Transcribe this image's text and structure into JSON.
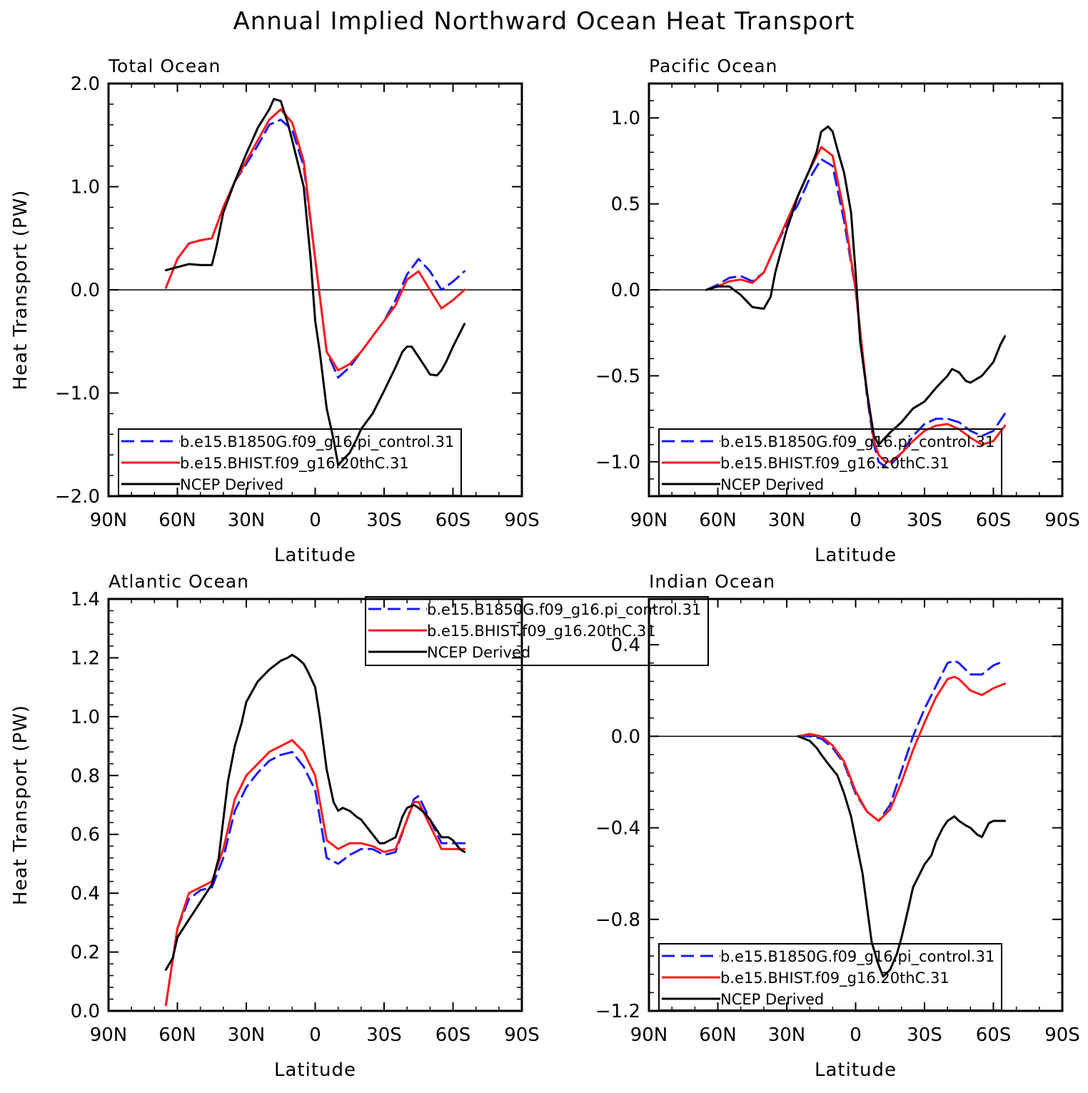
{
  "title": "Annual Implied Northward Ocean Heat Transport",
  "colors": {
    "blue": "#1a1aff",
    "red": "#ff1a1a",
    "black": "#000000"
  },
  "legend_labels": [
    "b.e15.B1850G.f09_g16.pi_control.31",
    "b.e15.BHIST.f09_g16.20thC.31",
    "NCEP Derived"
  ],
  "chart_data": [
    {
      "type": "line",
      "title": "Total Ocean",
      "xlabel": "Latitude",
      "ylabel": "Heat Transport (PW)",
      "xlim": [
        90,
        -90
      ],
      "ylim": [
        -2.0,
        2.0
      ],
      "xticks": [
        90,
        60,
        30,
        0,
        -30,
        -60,
        -90
      ],
      "xtick_labels": [
        "90N",
        "60N",
        "30N",
        "0",
        "30S",
        "60S",
        "90S"
      ],
      "yticks": [
        2.0,
        1.0,
        0.0,
        -1.0,
        -2.0
      ],
      "ytick_labels": [
        "2.0",
        "1.0",
        "0.0",
        "−1.0",
        "−2.0"
      ],
      "legend_position": "bottom-left",
      "series": [
        {
          "name": "b.e15.B1850G.f09_g16.pi_control.31",
          "color": "blue",
          "dash": true,
          "x": [
            65,
            60,
            55,
            50,
            45,
            40,
            35,
            30,
            25,
            20,
            15,
            10,
            5,
            0,
            -5,
            -10,
            -15,
            -20,
            -25,
            -30,
            -35,
            -40,
            -45,
            -50,
            -55,
            -60,
            -65
          ],
          "y": [
            0.02,
            0.3,
            0.45,
            0.48,
            0.5,
            0.8,
            1.05,
            1.22,
            1.4,
            1.6,
            1.65,
            1.55,
            1.2,
            0.3,
            -0.6,
            -0.85,
            -0.75,
            -0.6,
            -0.45,
            -0.3,
            -0.1,
            0.15,
            0.3,
            0.18,
            0.0,
            0.08,
            0.18
          ]
        },
        {
          "name": "b.e15.BHIST.f09_g16.20thC.31",
          "color": "red",
          "dash": false,
          "x": [
            65,
            60,
            55,
            50,
            45,
            40,
            35,
            30,
            25,
            20,
            15,
            10,
            5,
            0,
            -5,
            -10,
            -15,
            -20,
            -25,
            -30,
            -35,
            -40,
            -45,
            -50,
            -55,
            -60,
            -65
          ],
          "y": [
            0.02,
            0.3,
            0.45,
            0.48,
            0.5,
            0.8,
            1.05,
            1.25,
            1.45,
            1.65,
            1.75,
            1.62,
            1.25,
            0.3,
            -0.6,
            -0.78,
            -0.72,
            -0.6,
            -0.45,
            -0.3,
            -0.15,
            0.1,
            0.18,
            0.0,
            -0.18,
            -0.1,
            0.0
          ]
        },
        {
          "name": "NCEP Derived",
          "color": "black",
          "dash": false,
          "x": [
            65,
            60,
            55,
            50,
            45,
            43,
            40,
            35,
            30,
            25,
            20,
            18,
            15,
            12,
            10,
            5,
            2,
            0,
            -2,
            -5,
            -8,
            -10,
            -12,
            -15,
            -18,
            -20,
            -25,
            -30,
            -35,
            -38,
            -40,
            -42,
            -45,
            -48,
            -50,
            -53,
            -55,
            -57,
            -60,
            -65
          ],
          "y": [
            0.19,
            0.22,
            0.25,
            0.24,
            0.24,
            0.42,
            0.75,
            1.05,
            1.32,
            1.57,
            1.75,
            1.85,
            1.83,
            1.62,
            1.45,
            1.0,
            0.3,
            -0.3,
            -0.6,
            -1.15,
            -1.45,
            -1.7,
            -1.65,
            -1.58,
            -1.45,
            -1.35,
            -1.2,
            -0.98,
            -0.75,
            -0.6,
            -0.55,
            -0.55,
            -0.65,
            -0.75,
            -0.82,
            -0.83,
            -0.78,
            -0.7,
            -0.55,
            -0.33
          ]
        }
      ]
    },
    {
      "type": "line",
      "title": "Pacific Ocean",
      "xlabel": "Latitude",
      "ylabel": "",
      "xlim": [
        90,
        -90
      ],
      "ylim": [
        -1.2,
        1.2
      ],
      "xticks": [
        90,
        60,
        30,
        0,
        -30,
        -60,
        -90
      ],
      "xtick_labels": [
        "90N",
        "60N",
        "30N",
        "0",
        "30S",
        "60S",
        "90S"
      ],
      "yticks": [
        1.0,
        0.5,
        0.0,
        -0.5,
        -1.0
      ],
      "ytick_labels": [
        "1.0",
        "0.5",
        "0.0",
        "−0.5",
        "−1.0"
      ],
      "legend_position": "bottom-left",
      "series": [
        {
          "name": "b.e15.B1850G.f09_g16.pi_control.31",
          "color": "blue",
          "dash": true,
          "x": [
            65,
            60,
            55,
            50,
            45,
            40,
            35,
            30,
            25,
            20,
            15,
            10,
            5,
            0,
            -5,
            -8,
            -10,
            -13,
            -15,
            -20,
            -25,
            -30,
            -35,
            -40,
            -45,
            -50,
            -55,
            -60,
            -65
          ],
          "y": [
            0.0,
            0.03,
            0.07,
            0.08,
            0.05,
            0.1,
            0.25,
            0.38,
            0.5,
            0.65,
            0.76,
            0.72,
            0.4,
            0.0,
            -0.62,
            -0.9,
            -1.0,
            -1.03,
            -1.02,
            -0.95,
            -0.85,
            -0.78,
            -0.75,
            -0.75,
            -0.77,
            -0.82,
            -0.85,
            -0.82,
            -0.72
          ]
        },
        {
          "name": "b.e15.BHIST.f09_g16.20thC.31",
          "color": "red",
          "dash": false,
          "x": [
            65,
            60,
            55,
            50,
            45,
            40,
            35,
            30,
            25,
            20,
            15,
            10,
            5,
            0,
            -5,
            -8,
            -10,
            -13,
            -15,
            -20,
            -25,
            -30,
            -35,
            -40,
            -45,
            -50,
            -55,
            -60,
            -65
          ],
          "y": [
            0.0,
            0.02,
            0.05,
            0.06,
            0.04,
            0.1,
            0.25,
            0.4,
            0.55,
            0.7,
            0.83,
            0.78,
            0.45,
            0.0,
            -0.6,
            -0.88,
            -0.96,
            -1.0,
            -1.0,
            -0.95,
            -0.88,
            -0.82,
            -0.79,
            -0.78,
            -0.81,
            -0.86,
            -0.9,
            -0.88,
            -0.79
          ]
        },
        {
          "name": "NCEP Derived",
          "color": "black",
          "dash": false,
          "x": [
            65,
            60,
            55,
            50,
            45,
            40,
            37,
            35,
            30,
            25,
            20,
            17,
            15,
            12,
            10,
            8,
            5,
            2,
            0,
            -2,
            -5,
            -8,
            -10,
            -15,
            -20,
            -25,
            -30,
            -35,
            -40,
            -42,
            -45,
            -48,
            -50,
            -55,
            -60,
            -63,
            -65
          ],
          "y": [
            0.0,
            0.02,
            0.02,
            -0.03,
            -0.1,
            -0.11,
            -0.04,
            0.1,
            0.35,
            0.55,
            0.7,
            0.8,
            0.92,
            0.95,
            0.92,
            0.82,
            0.68,
            0.45,
            0.1,
            -0.3,
            -0.6,
            -0.85,
            -0.9,
            -0.83,
            -0.77,
            -0.69,
            -0.65,
            -0.57,
            -0.5,
            -0.46,
            -0.48,
            -0.53,
            -0.54,
            -0.5,
            -0.42,
            -0.32,
            -0.27
          ]
        }
      ]
    },
    {
      "type": "line",
      "title": "Atlantic Ocean",
      "xlabel": "Latitude",
      "ylabel": "Heat Transport (PW)",
      "xlim": [
        90,
        -90
      ],
      "ylim": [
        0.0,
        1.4
      ],
      "xticks": [
        90,
        60,
        30,
        0,
        -30,
        -60,
        -90
      ],
      "xtick_labels": [
        "90N",
        "60N",
        "30N",
        "0",
        "30S",
        "60S",
        "90S"
      ],
      "yticks": [
        1.4,
        1.2,
        1.0,
        0.8,
        0.6,
        0.4,
        0.2,
        0.0
      ],
      "ytick_labels": [
        "1.4",
        "1.2",
        "1.0",
        "0.8",
        "0.6",
        "0.4",
        "0.2",
        "0.0"
      ],
      "legend_position": "top-center",
      "series": [
        {
          "name": "b.e15.B1850G.f09_g16.pi_control.31",
          "color": "blue",
          "dash": true,
          "x": [
            65,
            60,
            55,
            50,
            45,
            40,
            35,
            30,
            25,
            20,
            15,
            10,
            5,
            0,
            -5,
            -10,
            -15,
            -20,
            -25,
            -30,
            -35,
            -40,
            -43,
            -45,
            -50,
            -55,
            -60,
            -65
          ],
          "y": [
            0.02,
            0.28,
            0.38,
            0.41,
            0.42,
            0.52,
            0.68,
            0.76,
            0.81,
            0.85,
            0.87,
            0.88,
            0.83,
            0.75,
            0.52,
            0.5,
            0.53,
            0.55,
            0.55,
            0.53,
            0.54,
            0.65,
            0.72,
            0.73,
            0.65,
            0.57,
            0.57,
            0.57
          ]
        },
        {
          "name": "b.e15.BHIST.f09_g16.20thC.31",
          "color": "red",
          "dash": false,
          "x": [
            65,
            60,
            55,
            50,
            45,
            40,
            35,
            30,
            25,
            20,
            15,
            10,
            5,
            0,
            -5,
            -10,
            -15,
            -20,
            -25,
            -30,
            -35,
            -40,
            -43,
            -45,
            -50,
            -55,
            -60,
            -65
          ],
          "y": [
            0.02,
            0.28,
            0.4,
            0.42,
            0.44,
            0.55,
            0.72,
            0.8,
            0.84,
            0.88,
            0.9,
            0.92,
            0.88,
            0.8,
            0.58,
            0.55,
            0.57,
            0.57,
            0.56,
            0.54,
            0.55,
            0.65,
            0.71,
            0.71,
            0.63,
            0.55,
            0.55,
            0.55
          ]
        },
        {
          "name": "NCEP Derived",
          "color": "black",
          "dash": false,
          "x": [
            65,
            62,
            60,
            55,
            50,
            45,
            42,
            40,
            38,
            35,
            32,
            30,
            25,
            20,
            15,
            12,
            10,
            8,
            5,
            3,
            0,
            -2,
            -5,
            -8,
            -10,
            -12,
            -15,
            -18,
            -20,
            -25,
            -28,
            -30,
            -35,
            -38,
            -40,
            -43,
            -45,
            -48,
            -50,
            -55,
            -58,
            -60,
            -63,
            -65
          ],
          "y": [
            0.14,
            0.18,
            0.25,
            0.31,
            0.37,
            0.43,
            0.52,
            0.65,
            0.78,
            0.9,
            0.98,
            1.05,
            1.12,
            1.16,
            1.19,
            1.2,
            1.21,
            1.2,
            1.18,
            1.15,
            1.1,
            1.0,
            0.82,
            0.71,
            0.68,
            0.69,
            0.68,
            0.66,
            0.65,
            0.6,
            0.57,
            0.57,
            0.59,
            0.66,
            0.69,
            0.7,
            0.69,
            0.67,
            0.65,
            0.59,
            0.59,
            0.58,
            0.55,
            0.54
          ]
        }
      ]
    },
    {
      "type": "line",
      "title": "Indian Ocean",
      "xlabel": "Latitude",
      "ylabel": "",
      "xlim": [
        90,
        -90
      ],
      "ylim": [
        -1.2,
        0.6
      ],
      "xticks": [
        90,
        60,
        30,
        0,
        -30,
        -60,
        -90
      ],
      "xtick_labels": [
        "90N",
        "60N",
        "30N",
        "0",
        "30S",
        "60S",
        "90S"
      ],
      "yticks": [
        0.4,
        0.0,
        -0.4,
        -0.8,
        -1.2
      ],
      "ytick_labels": [
        "0.4",
        "0.0",
        "−0.4",
        "−0.8",
        "−1.2"
      ],
      "legend_position": "bottom-left",
      "series": [
        {
          "name": "b.e15.B1850G.f09_g16.pi_control.31",
          "color": "blue",
          "dash": true,
          "x": [
            25,
            20,
            15,
            10,
            5,
            0,
            -5,
            -10,
            -15,
            -20,
            -25,
            -30,
            -35,
            -40,
            -43,
            -45,
            -50,
            -55,
            -60,
            -65
          ],
          "y": [
            0.0,
            0.0,
            -0.01,
            -0.05,
            -0.12,
            -0.25,
            -0.33,
            -0.37,
            -0.3,
            -0.15,
            0.0,
            0.12,
            0.22,
            0.32,
            0.33,
            0.32,
            0.27,
            0.27,
            0.31,
            0.33
          ]
        },
        {
          "name": "b.e15.BHIST.f09_g16.20thC.31",
          "color": "red",
          "dash": false,
          "x": [
            25,
            20,
            15,
            10,
            5,
            0,
            -5,
            -10,
            -15,
            -20,
            -25,
            -30,
            -35,
            -40,
            -43,
            -45,
            -50,
            -55,
            -60,
            -65
          ],
          "y": [
            0.0,
            0.01,
            0.0,
            -0.04,
            -0.11,
            -0.24,
            -0.33,
            -0.37,
            -0.32,
            -0.2,
            -0.06,
            0.06,
            0.17,
            0.25,
            0.26,
            0.25,
            0.2,
            0.18,
            0.21,
            0.23
          ]
        },
        {
          "name": "NCEP Derived",
          "color": "black",
          "dash": false,
          "x": [
            25,
            20,
            17,
            15,
            12,
            8,
            5,
            2,
            0,
            -3,
            -5,
            -7,
            -10,
            -12,
            -15,
            -18,
            -20,
            -23,
            -25,
            -28,
            -30,
            -33,
            -35,
            -38,
            -40,
            -43,
            -45,
            -48,
            -50,
            -53,
            -55,
            -58,
            -60,
            -63,
            -65
          ],
          "y": [
            0.0,
            -0.02,
            -0.05,
            -0.08,
            -0.12,
            -0.17,
            -0.25,
            -0.35,
            -0.45,
            -0.6,
            -0.75,
            -0.9,
            -1.0,
            -1.05,
            -1.02,
            -0.95,
            -0.88,
            -0.75,
            -0.66,
            -0.6,
            -0.56,
            -0.52,
            -0.46,
            -0.4,
            -0.37,
            -0.35,
            -0.37,
            -0.39,
            -0.4,
            -0.43,
            -0.44,
            -0.38,
            -0.37,
            -0.37,
            -0.37
          ]
        }
      ]
    }
  ]
}
